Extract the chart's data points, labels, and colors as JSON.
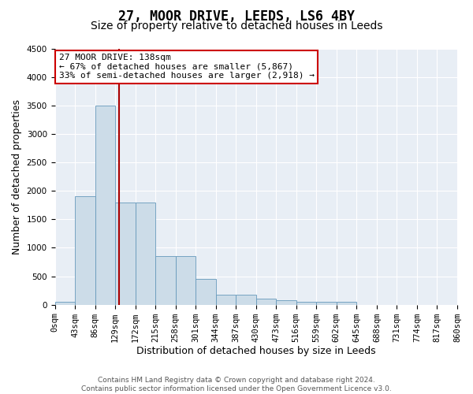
{
  "title": "27, MOOR DRIVE, LEEDS, LS6 4BY",
  "subtitle": "Size of property relative to detached houses in Leeds",
  "xlabel": "Distribution of detached houses by size in Leeds",
  "ylabel": "Number of detached properties",
  "bin_edges": [
    0,
    43,
    86,
    129,
    172,
    215,
    258,
    301,
    344,
    387,
    430,
    473,
    516,
    559,
    602,
    645,
    688,
    731,
    774,
    817,
    860
  ],
  "bar_heights": [
    50,
    1900,
    3500,
    1800,
    1800,
    850,
    850,
    450,
    175,
    175,
    100,
    75,
    50,
    50,
    50,
    0,
    0,
    0,
    0,
    0
  ],
  "bar_color": "#ccdce8",
  "bar_edgecolor": "#6699bb",
  "property_size": 138,
  "vline_color": "#aa0000",
  "annotation_line1": "27 MOOR DRIVE: 138sqm",
  "annotation_line2": "← 67% of detached houses are smaller (5,867)",
  "annotation_line3": "33% of semi-detached houses are larger (2,918) →",
  "annotation_boxcolor": "white",
  "annotation_edgecolor": "#cc0000",
  "ylim": [
    0,
    4500
  ],
  "yticks": [
    0,
    500,
    1000,
    1500,
    2000,
    2500,
    3000,
    3500,
    4000,
    4500
  ],
  "background_color": "#e8eef5",
  "footnote": "Contains HM Land Registry data © Crown copyright and database right 2024.\nContains public sector information licensed under the Open Government Licence v3.0.",
  "title_fontsize": 12,
  "subtitle_fontsize": 10,
  "label_fontsize": 9,
  "tick_fontsize": 7.5,
  "annot_fontsize": 8
}
